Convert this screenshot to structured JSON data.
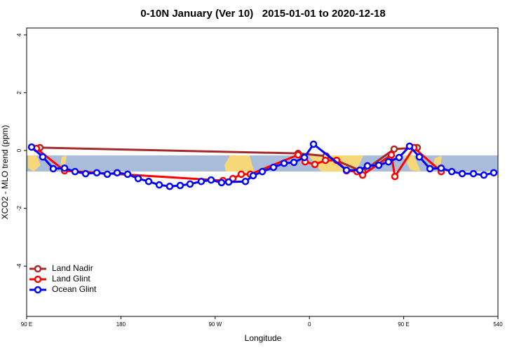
{
  "chart_data": {
    "type": "line",
    "title": "0-10N January (Ver 10)   2015-01-01 to 2020-12-18",
    "x_label": "Longitude",
    "y_label": "XCO2 - MLO trend (ppm)",
    "xlim": [
      90,
      540
    ],
    "xticks": [
      {
        "value": 90,
        "label": "90 E"
      },
      180,
      {
        "value": 270,
        "label": "90 W"
      },
      {
        "value": 360,
        "label": "0"
      },
      {
        "value": 450,
        "label": "90 E"
      },
      540
    ],
    "ylim": [
      -5.74,
      4.24
    ],
    "yticks": [
      -4,
      -2,
      0,
      2,
      4
    ],
    "legend": "lower left",
    "series": [
      {
        "name": "Land Nadir",
        "color": "#a52a2a",
        "x": [
          102.7,
          349.2,
          375.9,
          410.8,
          440.9,
          463
        ],
        "values": [
          0.1,
          -0.1,
          -0.19,
          -0.73,
          0.05,
          0.1
        ]
      },
      {
        "name": "Land Glint",
        "color": "#ff0000",
        "x": [
          99.4,
          126.2,
          277.5,
          286.9,
          294.9,
          303.6,
          349.2,
          355.9,
          365.2,
          375.3,
          386,
          395.4,
          405.4,
          410.8,
          438.2,
          441.6,
          459.7,
          485.8
        ],
        "values": [
          0.07,
          -0.7,
          -1.04,
          -0.97,
          -0.82,
          -0.82,
          -0.15,
          -0.39,
          -0.48,
          -0.34,
          -0.34,
          -0.7,
          -0.73,
          -0.85,
          -0.15,
          -0.9,
          0.1,
          -0.73
        ]
      },
      {
        "name": "Ocean Glint",
        "color": "#0000ff",
        "x": [
          94.7,
          105.4,
          115.4,
          126.2,
          136.2,
          146.3,
          157,
          167,
          176.4,
          186.4,
          196.5,
          206.5,
          216.6,
          226.6,
          236.6,
          246,
          256.7,
          266.1,
          276.1,
          282.9,
          298.9,
          306.3,
          315,
          325.7,
          335.8,
          345.2,
          355.2,
          363.9,
          395.4,
          408.1,
          415.4,
          426.2,
          435.5,
          445.6,
          455.6,
          465,
          475.1,
          485.8,
          495.9,
          505.9,
          516.6,
          526.6,
          536
        ],
        "values": [
          0.12,
          -0.22,
          -0.63,
          -0.61,
          -0.73,
          -0.8,
          -0.77,
          -0.82,
          -0.77,
          -0.82,
          -0.97,
          -1.07,
          -1.19,
          -1.24,
          -1.21,
          -1.16,
          -1.07,
          -1.02,
          -1.11,
          -1.09,
          -1.07,
          -0.87,
          -0.73,
          -0.58,
          -0.44,
          -0.41,
          -0.24,
          0.22,
          -0.68,
          -0.68,
          -0.53,
          -0.51,
          -0.39,
          -0.24,
          0.15,
          -0.22,
          -0.63,
          -0.61,
          -0.73,
          -0.8,
          -0.8,
          -0.85,
          -0.77
        ]
      }
    ]
  }
}
